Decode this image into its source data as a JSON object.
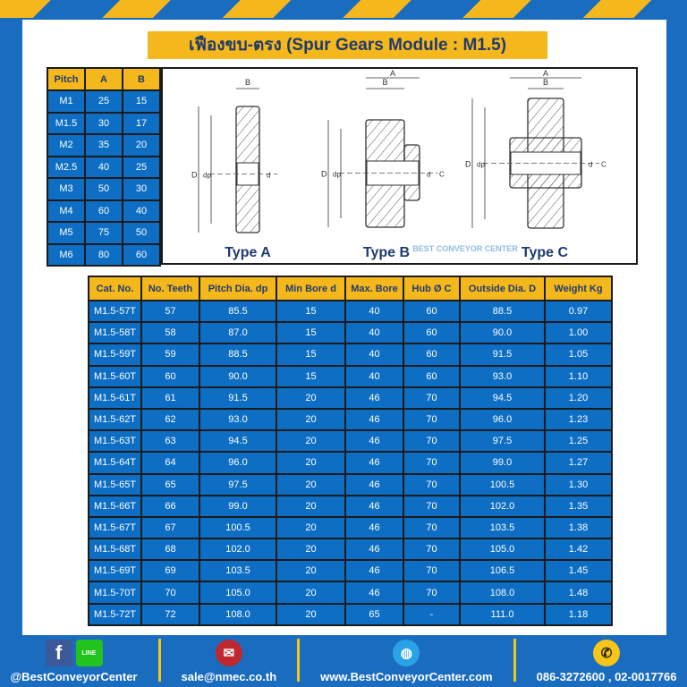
{
  "title": "เฟืองขบ-ตรง (Spur Gears Module : M1.5)",
  "watermark": "BEST CONVEYOR CENTER",
  "pitch_table": {
    "headers": [
      "Pitch",
      "A",
      "B"
    ],
    "rows": [
      [
        "M1",
        "25",
        "15"
      ],
      [
        "M1.5",
        "30",
        "17"
      ],
      [
        "M2",
        "35",
        "20"
      ],
      [
        "M2.5",
        "40",
        "25"
      ],
      [
        "M3",
        "50",
        "30"
      ],
      [
        "M4",
        "60",
        "40"
      ],
      [
        "M5",
        "75",
        "50"
      ],
      [
        "M6",
        "80",
        "60"
      ]
    ]
  },
  "diagrams": {
    "labels": [
      "Type A",
      "Type B",
      "Type C"
    ],
    "dims": {
      "A": "A",
      "B": "B",
      "D": "D",
      "dp": "dp",
      "d": "d",
      "C": "C"
    }
  },
  "main_table": {
    "headers": [
      "Cat. No.",
      "No. Teeth",
      "Pitch Dia. dp",
      "Min Bore d",
      "Max. Bore",
      "Hub Ø C",
      "Outside Dia. D",
      "Weight Kg"
    ],
    "rows": [
      [
        "M1.5-57T",
        "57",
        "85.5",
        "15",
        "40",
        "60",
        "88.5",
        "0.97"
      ],
      [
        "M1.5-58T",
        "58",
        "87.0",
        "15",
        "40",
        "60",
        "90.0",
        "1.00"
      ],
      [
        "M1.5-59T",
        "59",
        "88.5",
        "15",
        "40",
        "60",
        "91.5",
        "1.05"
      ],
      [
        "M1.5-60T",
        "60",
        "90.0",
        "15",
        "40",
        "60",
        "93.0",
        "1.10"
      ],
      [
        "M1.5-61T",
        "61",
        "91.5",
        "20",
        "46",
        "70",
        "94.5",
        "1.20"
      ],
      [
        "M1.5-62T",
        "62",
        "93.0",
        "20",
        "46",
        "70",
        "96.0",
        "1.23"
      ],
      [
        "M1.5-63T",
        "63",
        "94.5",
        "20",
        "46",
        "70",
        "97.5",
        "1.25"
      ],
      [
        "M1.5-64T",
        "64",
        "96.0",
        "20",
        "46",
        "70",
        "99.0",
        "1.27"
      ],
      [
        "M1.5-65T",
        "65",
        "97.5",
        "20",
        "46",
        "70",
        "100.5",
        "1.30"
      ],
      [
        "M1.5-66T",
        "66",
        "99.0",
        "20",
        "46",
        "70",
        "102.0",
        "1.35"
      ],
      [
        "M1.5-67T",
        "67",
        "100.5",
        "20",
        "46",
        "70",
        "103.5",
        "1.38"
      ],
      [
        "M1.5-68T",
        "68",
        "102.0",
        "20",
        "46",
        "70",
        "105.0",
        "1.42"
      ],
      [
        "M1.5-69T",
        "69",
        "103.5",
        "20",
        "46",
        "70",
        "106.5",
        "1.45"
      ],
      [
        "M1.5-70T",
        "70",
        "105.0",
        "20",
        "46",
        "70",
        "108.0",
        "1.48"
      ],
      [
        "M1.5-72T",
        "72",
        "108.0",
        "20",
        "65",
        "-",
        "111.0",
        "1.18"
      ]
    ]
  },
  "footer": {
    "social": "@BestConveyorCenter",
    "email": "sale@nmec.co.th",
    "website": "www.BestConveyorCenter.com",
    "phone": "086-3272600 , 02-0017766",
    "line_label": "LINE"
  },
  "colors": {
    "blue": "#1a6cbf",
    "yellow": "#f5b81c",
    "cell": "#0d6ec4"
  }
}
